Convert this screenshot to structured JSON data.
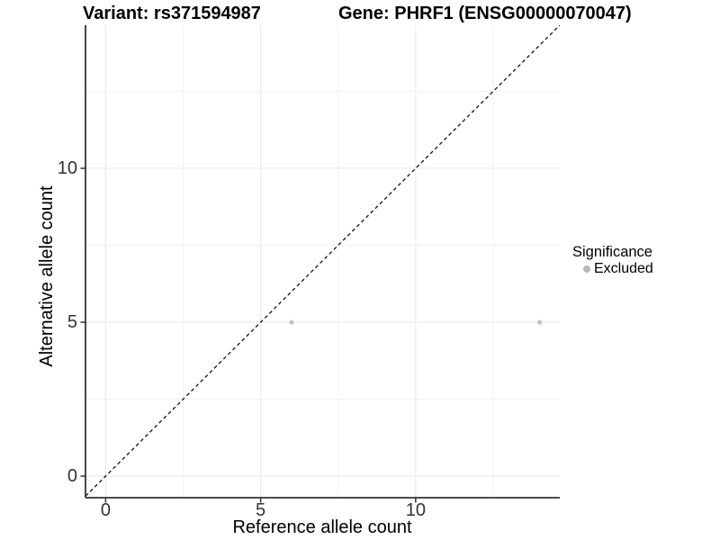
{
  "header": {
    "left_title": "Variant: rs371594987",
    "right_title": "Gene: PHRF1 (ENSG00000070047)"
  },
  "chart_data": {
    "type": "scatter",
    "xlabel": "Reference allele count",
    "ylabel": "Alternative allele count",
    "xlim": [
      -0.65,
      14.65
    ],
    "ylim": [
      -0.7,
      14.65
    ],
    "x_ticks": [
      0,
      5,
      10
    ],
    "y_ticks": [
      0,
      5,
      10
    ],
    "x_tick_labels": [
      "0",
      "5",
      "10"
    ],
    "y_tick_labels": [
      "0",
      "5",
      "10"
    ],
    "x_minor_ticks": [
      2.5,
      7.5,
      12.5
    ],
    "y_minor_ticks": [
      2.5,
      7.5,
      12.5
    ],
    "grid": true,
    "series": [
      {
        "name": "Excluded",
        "points": [
          {
            "x": 6,
            "y": 5
          },
          {
            "x": 14,
            "y": 5
          }
        ]
      }
    ],
    "abline": {
      "slope": 1,
      "intercept": 0,
      "style": "dashed"
    },
    "colors": {
      "point_excluded": "#c2c2c2",
      "legend_key": "#b8b8b8",
      "axis_line": "#333333",
      "tick_mark": "#333333",
      "tick_text": "#333333",
      "grid_major": "#e8e8e8",
      "grid_minor": "#f2f2f2",
      "abline": "#111111"
    }
  },
  "legend": {
    "title": "Significance",
    "items": [
      {
        "label": "Excluded",
        "color": "#b8b8b8"
      }
    ]
  }
}
